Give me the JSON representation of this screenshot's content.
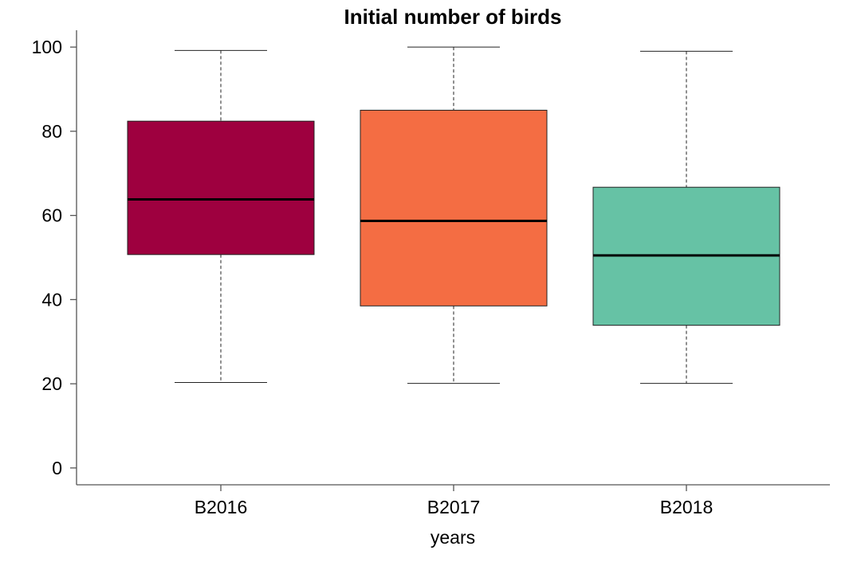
{
  "chart_data": {
    "type": "boxplot",
    "title": "Initial number of birds",
    "xlabel": "years",
    "ylabel": "",
    "categories": [
      "B2016",
      "B2017",
      "B2018"
    ],
    "ylim": [
      -4,
      104
    ],
    "yticks": [
      0,
      20,
      40,
      60,
      80,
      100
    ],
    "grid": false,
    "series": [
      {
        "category": "B2016",
        "min": 20.3,
        "q1": 50.7,
        "median": 63.8,
        "q3": 82.4,
        "max": 99.2,
        "color": "#9e003f"
      },
      {
        "category": "B2017",
        "min": 20.1,
        "q1": 38.5,
        "median": 58.7,
        "q3": 85.0,
        "max": 100.0,
        "color": "#f46d43"
      },
      {
        "category": "B2018",
        "min": 20.1,
        "q1": 33.9,
        "median": 50.5,
        "q3": 66.7,
        "max": 99.0,
        "color": "#66c2a5"
      }
    ]
  }
}
